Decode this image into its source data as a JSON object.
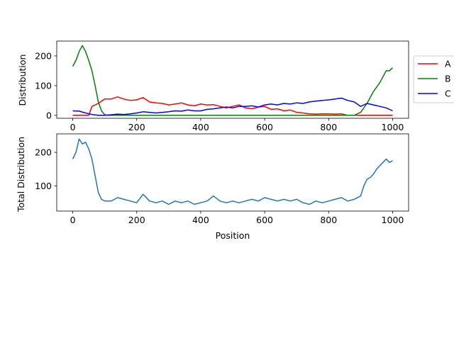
{
  "chart_data": [
    {
      "type": "line",
      "xlabel": "",
      "ylabel": "Distribution",
      "xlim": [
        -50,
        1050
      ],
      "ylim": [
        -10,
        250
      ],
      "xticks": [
        0,
        200,
        400,
        600,
        800,
        1000
      ],
      "yticks": [
        0,
        100,
        200
      ],
      "legend_position": "outside-right",
      "series": [
        {
          "name": "A",
          "color": "#ff0000",
          "x": [
            0,
            50,
            60,
            80,
            100,
            120,
            140,
            160,
            180,
            200,
            220,
            240,
            260,
            280,
            300,
            320,
            340,
            360,
            380,
            400,
            420,
            440,
            460,
            480,
            500,
            520,
            540,
            560,
            580,
            600,
            620,
            640,
            660,
            680,
            700,
            720,
            740,
            760,
            780,
            800,
            820,
            840,
            860,
            880,
            900,
            1000
          ],
          "y": [
            0,
            0,
            30,
            40,
            55,
            55,
            62,
            55,
            50,
            52,
            60,
            45,
            42,
            40,
            35,
            38,
            42,
            35,
            32,
            38,
            35,
            36,
            30,
            25,
            30,
            35,
            25,
            22,
            28,
            30,
            20,
            22,
            15,
            18,
            10,
            8,
            5,
            4,
            5,
            5,
            4,
            5,
            0,
            0,
            0,
            0
          ]
        },
        {
          "name": "B",
          "color": "#008000",
          "x": [
            0,
            10,
            20,
            30,
            40,
            50,
            60,
            70,
            80,
            90,
            100,
            110,
            150,
            200,
            300,
            400,
            500,
            600,
            700,
            800,
            880,
            900,
            920,
            940,
            960,
            970,
            980,
            990,
            1000
          ],
          "y": [
            165,
            185,
            215,
            235,
            215,
            185,
            150,
            100,
            45,
            15,
            2,
            0,
            0,
            0,
            0,
            0,
            0,
            0,
            0,
            0,
            0,
            10,
            40,
            80,
            110,
            130,
            150,
            150,
            160
          ]
        },
        {
          "name": "C",
          "color": "#0000ff",
          "x": [
            0,
            20,
            40,
            60,
            80,
            100,
            120,
            140,
            160,
            180,
            200,
            220,
            240,
            260,
            280,
            300,
            320,
            340,
            360,
            380,
            400,
            420,
            440,
            460,
            480,
            500,
            520,
            540,
            560,
            580,
            600,
            620,
            640,
            660,
            680,
            700,
            720,
            740,
            760,
            780,
            800,
            820,
            840,
            860,
            880,
            900,
            920,
            940,
            960,
            980,
            1000
          ],
          "y": [
            15,
            14,
            8,
            3,
            0,
            0,
            2,
            4,
            3,
            5,
            8,
            12,
            10,
            8,
            10,
            12,
            15,
            14,
            18,
            15,
            15,
            20,
            22,
            25,
            28,
            25,
            30,
            30,
            32,
            28,
            35,
            38,
            35,
            40,
            38,
            42,
            40,
            45,
            48,
            50,
            52,
            55,
            58,
            50,
            45,
            30,
            40,
            35,
            30,
            25,
            15
          ]
        }
      ]
    },
    {
      "type": "line",
      "xlabel": "Position",
      "ylabel": "Total Distribution",
      "xlim": [
        -50,
        1050
      ],
      "ylim": [
        25,
        255
      ],
      "xticks": [
        0,
        200,
        400,
        600,
        800,
        1000
      ],
      "yticks": [
        100,
        200
      ],
      "series": [
        {
          "color": "#1f77b4",
          "x": [
            0,
            10,
            20,
            30,
            40,
            50,
            60,
            70,
            80,
            90,
            100,
            120,
            140,
            160,
            180,
            200,
            220,
            240,
            260,
            280,
            300,
            320,
            340,
            360,
            380,
            400,
            420,
            440,
            460,
            480,
            500,
            520,
            540,
            560,
            580,
            600,
            620,
            640,
            660,
            680,
            700,
            720,
            740,
            760,
            780,
            800,
            820,
            840,
            860,
            880,
            900,
            910,
            920,
            930,
            940,
            950,
            960,
            970,
            980,
            990,
            1000
          ],
          "y": [
            180,
            200,
            240,
            225,
            230,
            210,
            180,
            130,
            80,
            60,
            55,
            55,
            65,
            60,
            55,
            50,
            75,
            55,
            50,
            55,
            45,
            55,
            50,
            55,
            45,
            50,
            55,
            70,
            55,
            50,
            55,
            50,
            55,
            60,
            55,
            65,
            60,
            55,
            60,
            55,
            60,
            50,
            45,
            55,
            50,
            55,
            60,
            65,
            55,
            60,
            70,
            100,
            120,
            125,
            135,
            150,
            160,
            170,
            180,
            170,
            175
          ]
        }
      ]
    }
  ]
}
